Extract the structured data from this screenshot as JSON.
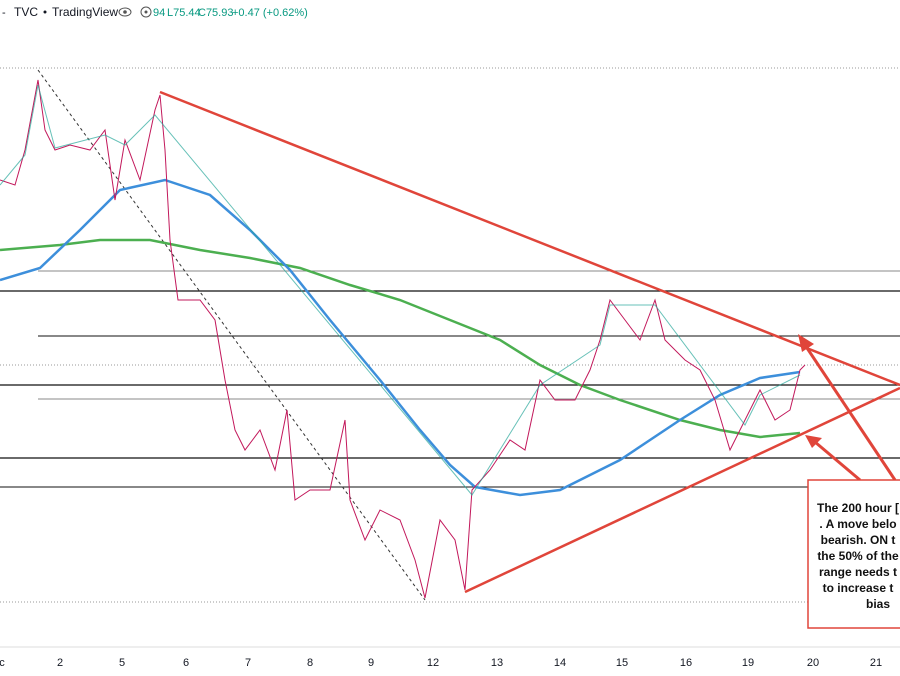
{
  "header": {
    "symbol": "TVC",
    "source": "TradingView",
    "open_fragment": "94",
    "low": "L75.44",
    "close": "C75.93",
    "change": "+0.47 (+0.62%)"
  },
  "x_axis": {
    "labels": [
      "c",
      "2",
      "5",
      "6",
      "7",
      "8",
      "9",
      "12",
      "13",
      "14",
      "15",
      "16",
      "19",
      "20",
      "21"
    ]
  },
  "annotation": {
    "lines": [
      "The 200 hour [",
      ". A move belo",
      "bearish. ON t",
      "the 50% of the",
      "range needs t",
      "to increase t",
      "bias"
    ]
  }
}
